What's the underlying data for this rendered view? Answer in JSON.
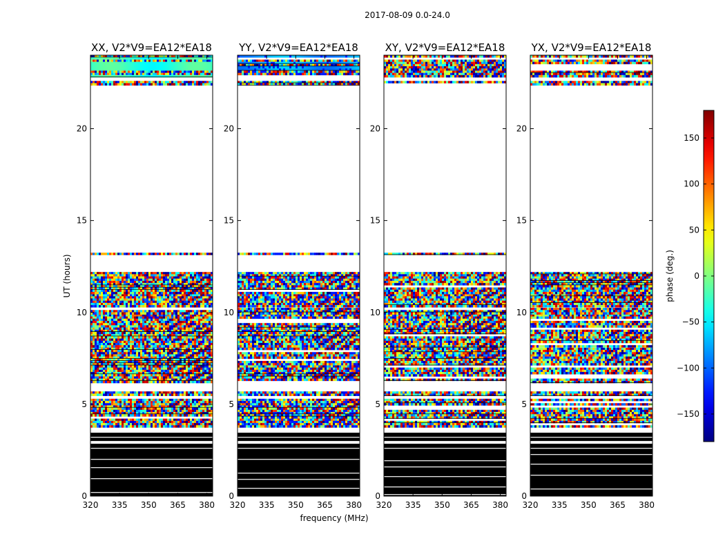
{
  "suptitle": "2017-08-09 0.0-24.0",
  "chart_data": {
    "type": "heatmap",
    "panels": [
      {
        "title": "XX, V2*V9=EA12*EA18",
        "variant": 0
      },
      {
        "title": "YY, V2*V9=EA12*EA18",
        "variant": 1
      },
      {
        "title": "XY, V2*V9=EA12*EA18",
        "variant": 2
      },
      {
        "title": "YX, V2*V9=EA12*EA18",
        "variant": 3
      }
    ],
    "xlabel": "frequency (MHz)",
    "ylabel": "UT (hours)",
    "xlim": [
      320,
      383
    ],
    "xticks": [
      320,
      335,
      350,
      365,
      380
    ],
    "ylim": [
      0,
      24
    ],
    "yticks": [
      0,
      5,
      10,
      15,
      20
    ],
    "colorbar": {
      "label": "phase (deg.)",
      "range": [
        -180,
        180
      ],
      "ticks": [
        -150,
        -100,
        -50,
        0,
        50,
        100,
        150
      ],
      "colormap": "jet"
    },
    "time_structure_hours": {
      "black_flagged": [
        [
          0.0,
          2.85
        ],
        [
          3.0,
          3.45
        ]
      ],
      "noisy_bands": [
        [
          3.8,
          5.3
        ],
        [
          5.5,
          5.7
        ],
        [
          6.2,
          8.2
        ],
        [
          8.2,
          9.9
        ],
        [
          10.0,
          10.25
        ],
        [
          10.35,
          11.0
        ],
        [
          11.1,
          12.2
        ],
        [
          13.15,
          13.25
        ],
        [
          22.45,
          22.6
        ],
        [
          22.9,
          24.0
        ]
      ]
    }
  }
}
